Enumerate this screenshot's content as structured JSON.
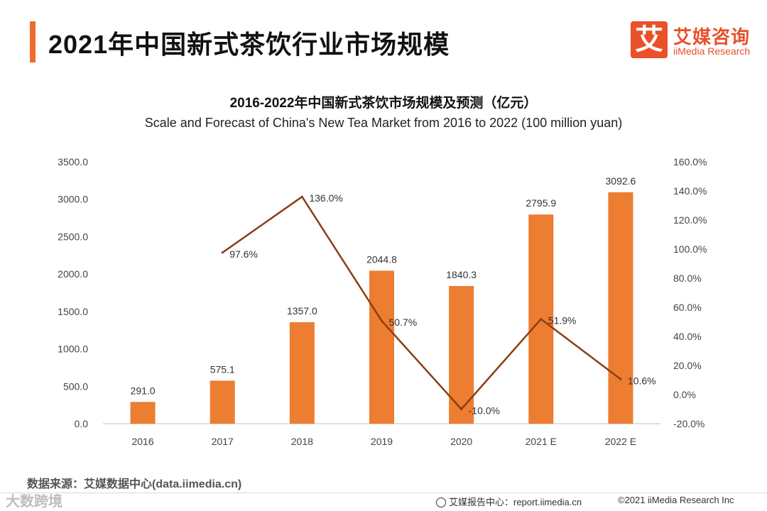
{
  "page_title": "2021年中国新式茶饮行业市场规模",
  "logo": {
    "mark": "艾",
    "cn": "艾媒咨询",
    "en": "iiMedia Research"
  },
  "chart_title": "2016-2022年中国新式茶饮市场规模及预测（亿元）",
  "chart_subtitle": "Scale and Forecast of China's New Tea Market from 2016 to 2022 (100 million yuan)",
  "colors": {
    "bar": "#ed7d31",
    "line": "#8b3f12",
    "accent": "#ee6c2d"
  },
  "chart_data": {
    "type": "bar",
    "categories": [
      "2016",
      "2017",
      "2018",
      "2019",
      "2020",
      "2021 E",
      "2022 E"
    ],
    "series": [
      {
        "type": "bar",
        "axis": "left",
        "values": [
          291.0,
          575.1,
          1357.0,
          2044.8,
          1840.3,
          2795.9,
          3092.6
        ],
        "labels": [
          "291.0",
          "575.1",
          "1357.0",
          "2044.8",
          "1840.3",
          "2795.9",
          "3092.6"
        ]
      },
      {
        "type": "line",
        "axis": "right",
        "values": [
          null,
          97.6,
          136.0,
          50.7,
          -10.0,
          51.9,
          10.6
        ],
        "labels": [
          "",
          "97.6%",
          "136.0%",
          "50.7%",
          "-10.0%",
          "51.9%",
          "10.6%"
        ]
      }
    ],
    "ylim_left": [
      0,
      3500
    ],
    "ylim_right": [
      -20,
      160
    ],
    "yticks_left": [
      "0.0",
      "500.0",
      "1000.0",
      "1500.0",
      "2000.0",
      "2500.0",
      "3000.0",
      "3500.0"
    ],
    "yticks_right": [
      "-20.0%",
      "0.0%",
      "20.0%",
      "40.0%",
      "60.0%",
      "80.0%",
      "100.0%",
      "120.0%",
      "140.0%",
      "160.0%"
    ],
    "grid": false,
    "legend": "none"
  },
  "source": "数据来源：艾媒数据中心(data.iimedia.cn)",
  "footer": {
    "watermark": "大数跨境",
    "report": "艾媒报告中心：report.iimedia.cn",
    "copyright": "©2021  iiMedia Research  Inc"
  }
}
